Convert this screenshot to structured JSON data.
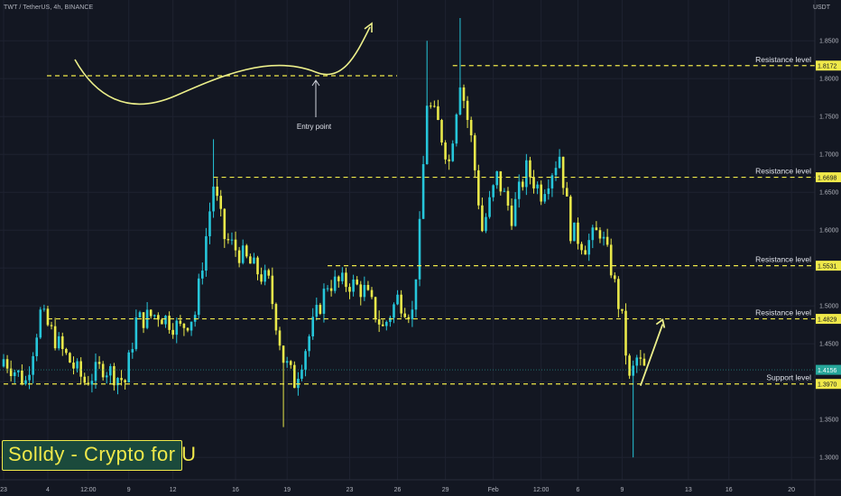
{
  "header": {
    "symbol_title": "TWT / TetherUS, 4h, BINANCE",
    "currency": "USDT"
  },
  "watermark": {
    "text": "Solldy - Crypto for U"
  },
  "colors": {
    "background": "#131722",
    "bull_candle": "#26c6da",
    "bear_candle": "#e8e84a",
    "level_line": "#f0e94a",
    "axis_text": "#b2b5be",
    "last_price_tag": "#26a69a"
  },
  "chart_data": {
    "type": "candlestick",
    "title": "TWT / TetherUS, 4h, BINANCE",
    "ylabel": "USDT",
    "ylim": [
      1.28,
      1.88
    ],
    "y_ticks": [
      1.85,
      1.8,
      1.75,
      1.7,
      1.65,
      1.6,
      1.55,
      1.5,
      1.45,
      1.4,
      1.35,
      1.3
    ],
    "x_ticks": [
      "23",
      "4",
      "12:00",
      "9",
      "12",
      "16",
      "19",
      "23",
      "26",
      "29",
      "Feb",
      "12:00",
      "6",
      "9",
      "13",
      "16",
      "20"
    ],
    "grid": true,
    "last_price": 1.4156,
    "anchors": [
      {
        "i": 0,
        "p": 1.43
      },
      {
        "i": 6,
        "p": 1.4
      },
      {
        "i": 10,
        "p": 1.49
      },
      {
        "i": 16,
        "p": 1.44
      },
      {
        "i": 22,
        "p": 1.4
      },
      {
        "i": 27,
        "p": 1.42
      },
      {
        "i": 33,
        "p": 1.4
      },
      {
        "i": 36,
        "p": 1.48
      },
      {
        "i": 42,
        "p": 1.49
      },
      {
        "i": 48,
        "p": 1.47
      },
      {
        "i": 52,
        "p": 1.49
      },
      {
        "i": 57,
        "p": 1.66
      },
      {
        "i": 60,
        "p": 1.59
      },
      {
        "i": 66,
        "p": 1.56
      },
      {
        "i": 72,
        "p": 1.53
      },
      {
        "i": 76,
        "p": 1.43
      },
      {
        "i": 79,
        "p": 1.4
      },
      {
        "i": 83,
        "p": 1.46
      },
      {
        "i": 88,
        "p": 1.53
      },
      {
        "i": 94,
        "p": 1.53
      },
      {
        "i": 98,
        "p": 1.52
      },
      {
        "i": 103,
        "p": 1.47
      },
      {
        "i": 107,
        "p": 1.51
      },
      {
        "i": 111,
        "p": 1.49
      },
      {
        "i": 113,
        "p": 1.6
      },
      {
        "i": 115,
        "p": 1.77
      },
      {
        "i": 118,
        "p": 1.74
      },
      {
        "i": 121,
        "p": 1.69
      },
      {
        "i": 124,
        "p": 1.8
      },
      {
        "i": 127,
        "p": 1.72
      },
      {
        "i": 130,
        "p": 1.6
      },
      {
        "i": 134,
        "p": 1.67
      },
      {
        "i": 138,
        "p": 1.62
      },
      {
        "i": 142,
        "p": 1.68
      },
      {
        "i": 146,
        "p": 1.65
      },
      {
        "i": 151,
        "p": 1.7
      },
      {
        "i": 154,
        "p": 1.6
      },
      {
        "i": 158,
        "p": 1.58
      },
      {
        "i": 162,
        "p": 1.6
      },
      {
        "i": 165,
        "p": 1.55
      },
      {
        "i": 168,
        "p": 1.48
      },
      {
        "i": 170,
        "p": 1.4
      },
      {
        "i": 172,
        "p": 1.43
      },
      {
        "i": 174,
        "p": 1.4156
      }
    ],
    "levels": [
      {
        "label": "Resistance level",
        "price": 1.8172,
        "tag": "1.8172"
      },
      {
        "label": "Resistance level",
        "price": 1.6698,
        "tag": "1.6698"
      },
      {
        "label": "Resistance level",
        "price": 1.5531,
        "tag": "1.5531"
      },
      {
        "label": "Resistance level",
        "price": 1.4829,
        "tag": "1.4829"
      },
      {
        "label": "Support level",
        "price": 1.397,
        "tag": "1.3970"
      }
    ],
    "annotations": [
      {
        "type": "text",
        "text": "Entry point"
      }
    ]
  }
}
